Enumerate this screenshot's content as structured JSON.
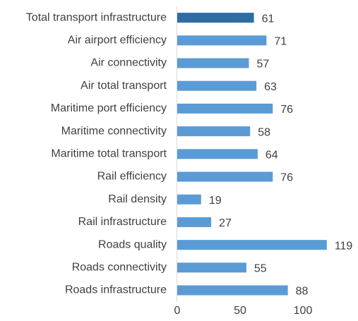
{
  "chart_data": {
    "type": "bar",
    "orientation": "horizontal",
    "categories": [
      "Total transport infrastructure",
      "Air airport efficiency",
      "Air connectivity",
      "Air total transport",
      "Maritime port efficiency",
      "Maritime connectivity",
      "Maritime total transport",
      "Rail efficiency",
      "Rail density",
      "Rail infrastructure",
      "Roads quality",
      "Roads connectivity",
      "Roads infrastructure"
    ],
    "values": [
      61,
      71,
      57,
      63,
      76,
      58,
      64,
      76,
      19,
      27,
      119,
      55,
      88
    ],
    "highlight_index": 0,
    "xlim": [
      0,
      125
    ],
    "xticks": [
      0,
      50,
      100
    ],
    "grid": false,
    "legend": "none",
    "colors": {
      "bar": "#5b9bd5",
      "highlight": "#2e6ca4",
      "axis": "#d9d9d9",
      "text": "#404040"
    }
  }
}
